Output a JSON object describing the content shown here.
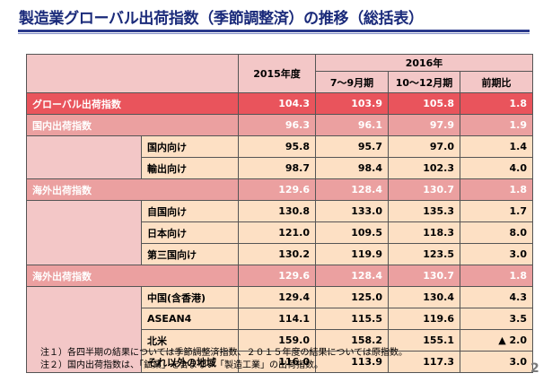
{
  "title": "製造業グローバル出荷指数（季節調整済）の推移（総括表）",
  "header": {
    "fy": "2015年度",
    "year2016": "2016年",
    "q3": "7～9月期",
    "q4": "10～12月期",
    "qoq": "前期比"
  },
  "global": {
    "label": "グローバル出荷指数",
    "fy": "104.3",
    "q3": "103.9",
    "q4": "105.8",
    "qoq": "1.8"
  },
  "domestic": {
    "label": "国内出荷指数",
    "fy": "96.3",
    "q3": "96.1",
    "q4": "97.9",
    "qoq": "1.9"
  },
  "domestic_rows": [
    {
      "label": "国内向け",
      "fy": "95.8",
      "q3": "95.7",
      "q4": "97.0",
      "qoq": "1.4"
    },
    {
      "label": "輸出向け",
      "fy": "98.7",
      "q3": "98.4",
      "q4": "102.3",
      "qoq": "4.0"
    }
  ],
  "overseas1": {
    "label": "海外出荷指数",
    "fy": "129.6",
    "q3": "128.4",
    "q4": "130.7",
    "qoq": "1.8"
  },
  "overseas1_rows": [
    {
      "label": "自国向け",
      "fy": "130.8",
      "q3": "133.0",
      "q4": "135.3",
      "qoq": "1.7"
    },
    {
      "label": "日本向け",
      "fy": "121.0",
      "q3": "109.5",
      "q4": "118.3",
      "qoq": "8.0"
    },
    {
      "label": "第三国向け",
      "fy": "130.2",
      "q3": "119.9",
      "q4": "123.5",
      "qoq": "3.0"
    }
  ],
  "overseas2": {
    "label": "海外出荷指数",
    "fy": "129.6",
    "q3": "128.4",
    "q4": "130.7",
    "qoq": "1.8"
  },
  "overseas2_rows": [
    {
      "label": "中国(含香港)",
      "fy": "129.4",
      "q3": "125.0",
      "q4": "130.4",
      "qoq": "4.3"
    },
    {
      "label": "ASEAN4",
      "fy": "114.1",
      "q3": "115.5",
      "q4": "119.6",
      "qoq": "3.5"
    },
    {
      "label": "北米",
      "fy": "159.0",
      "q3": "158.2",
      "q4": "155.1",
      "qoq": "▲ 2.0"
    },
    {
      "label": "それ以外の地域",
      "fy": "116.0",
      "q3": "113.9",
      "q4": "117.3",
      "qoq": "3.0"
    }
  ],
  "notes": [
    "注１）各四半期の結果については季節調整済指数、２０１５年度の結果については原指数。",
    "注２）国内出荷指数は、「鉱業」を含まない「製造工業」の出荷指数。"
  ],
  "page_number": "2"
}
